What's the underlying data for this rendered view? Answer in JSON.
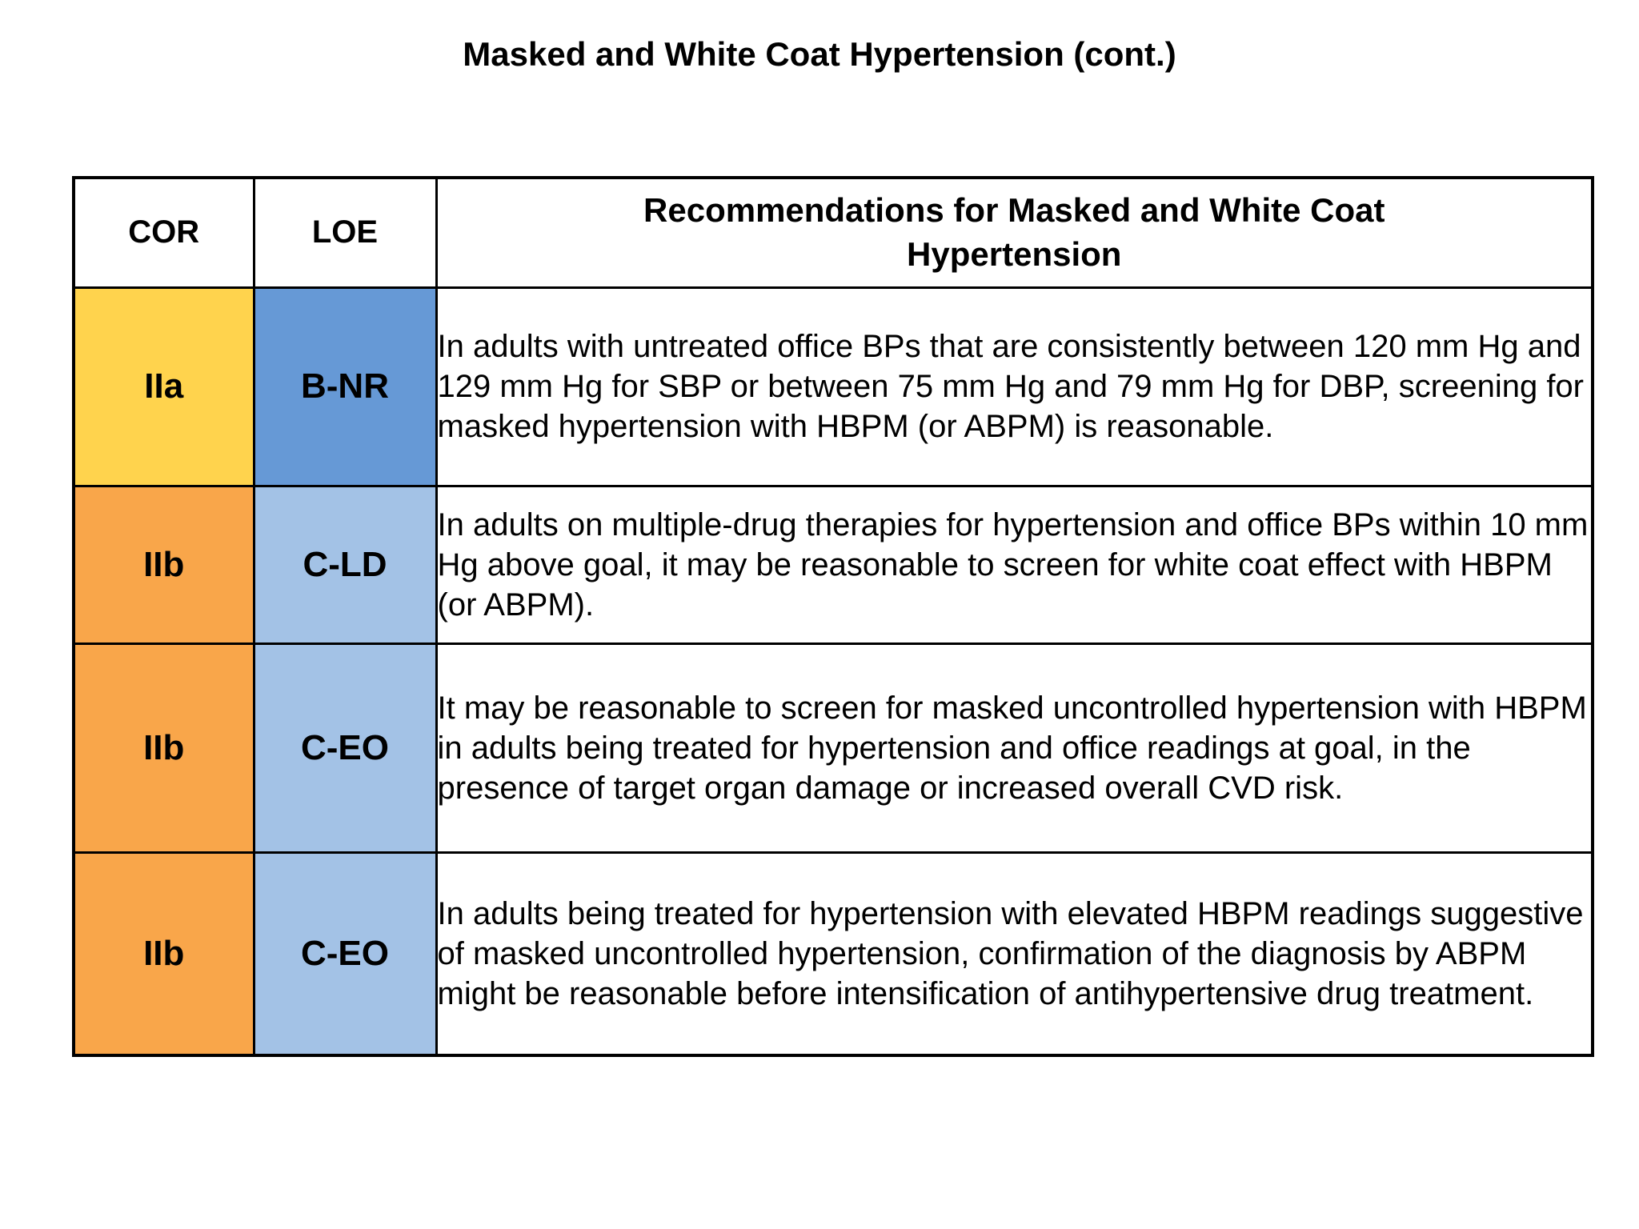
{
  "page": {
    "title": "Masked and White Coat Hypertension (cont.)"
  },
  "colors": {
    "cor_iia_yellow": "#FFD34D",
    "cor_iib_orange": "#F9A64A",
    "loe_bnr_blue": "#6699D6",
    "loe_c_light_blue": "#A3C2E6",
    "border_black": "#000000",
    "background_white": "#FFFFFF"
  },
  "table": {
    "header": {
      "cor": "COR",
      "loe": "LOE",
      "rec_line1": "Recommendations for Masked and White Coat",
      "rec_line2": "Hypertension"
    },
    "rows": [
      {
        "cor": "IIa",
        "loe": "B-NR",
        "cor_color": "#FFD34D",
        "loe_color": "#6699D6",
        "text": "In adults with untreated office BPs that are consistently between 120 mm Hg and 129 mm Hg for SBP or between 75 mm Hg and 79 mm Hg for DBP, screening for masked hypertension with HBPM (or ABPM) is reasonable."
      },
      {
        "cor": "IIb",
        "loe": "C-LD",
        "cor_color": "#F9A64A",
        "loe_color": "#A3C2E6",
        "text": "In adults on multiple-drug therapies for hypertension and office BPs within 10 mm Hg above goal, it may be reasonable to screen for white coat effect with HBPM (or ABPM)."
      },
      {
        "cor": "IIb",
        "loe": "C-EO",
        "cor_color": "#F9A64A",
        "loe_color": "#A3C2E6",
        "text": "It may be reasonable to screen for masked uncontrolled hypertension with HBPM in adults being treated for hypertension and office readings at goal, in the presence of target organ damage or increased overall CVD risk."
      },
      {
        "cor": "IIb",
        "loe": "C-EO",
        "cor_color": "#F9A64A",
        "loe_color": "#A3C2E6",
        "text": "In adults being treated for hypertension with elevated HBPM readings suggestive of masked uncontrolled hypertension, confirmation of the diagnosis by ABPM might be reasonable before intensification of antihypertensive drug treatment."
      }
    ]
  }
}
